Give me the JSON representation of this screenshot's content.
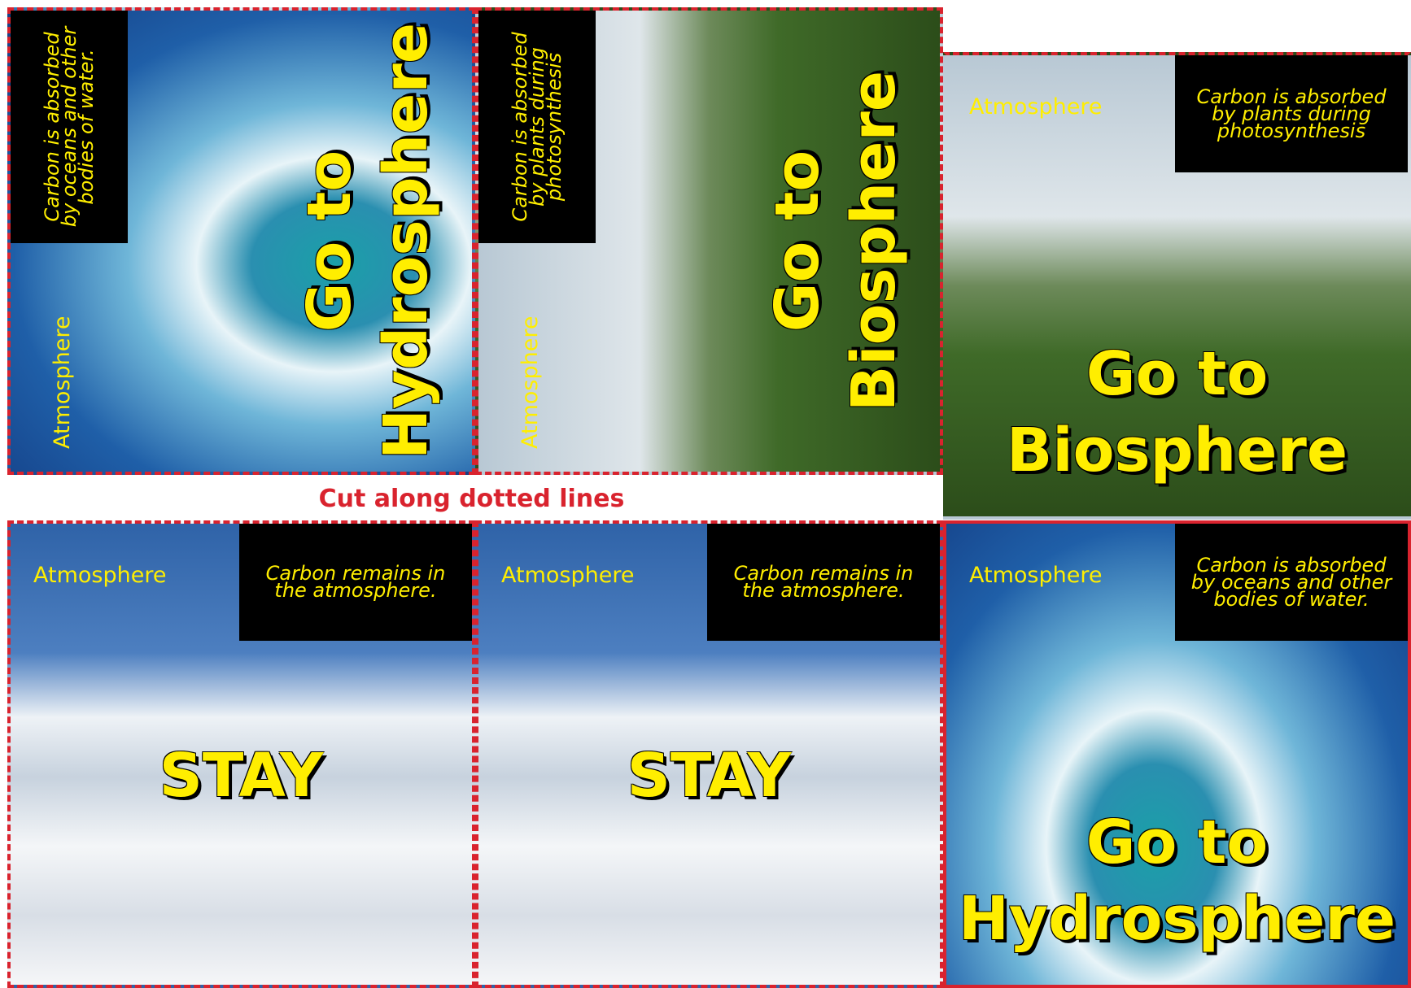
{
  "instruction": "Cut along dotted lines",
  "cards": [
    {
      "region": "Atmosphere",
      "description": "Carbon is absorbed by oceans and other bodies of water.",
      "action": [
        "Go to",
        "Hydrosphere"
      ]
    },
    {
      "region": "Atmosphere",
      "description": "Carbon is absorbed by plants during photosynthesis",
      "action": [
        "Go to",
        "Biosphere"
      ]
    },
    {
      "region": "Atmosphere",
      "description": "Carbon is absorbed by plants during photosynthesis",
      "action": [
        "Go to",
        "Biosphere"
      ]
    },
    {
      "region": "Atmosphere",
      "description": "Carbon remains in the atmosphere.",
      "action": [
        "STAY"
      ]
    },
    {
      "region": "Atmosphere",
      "description": "Carbon remains in the atmosphere.",
      "action": [
        "STAY"
      ]
    },
    {
      "region": "Atmosphere",
      "description": "Carbon is absorbed by oceans and other bodies of water.",
      "action": [
        "Go to",
        "Hydrosphere"
      ]
    }
  ]
}
